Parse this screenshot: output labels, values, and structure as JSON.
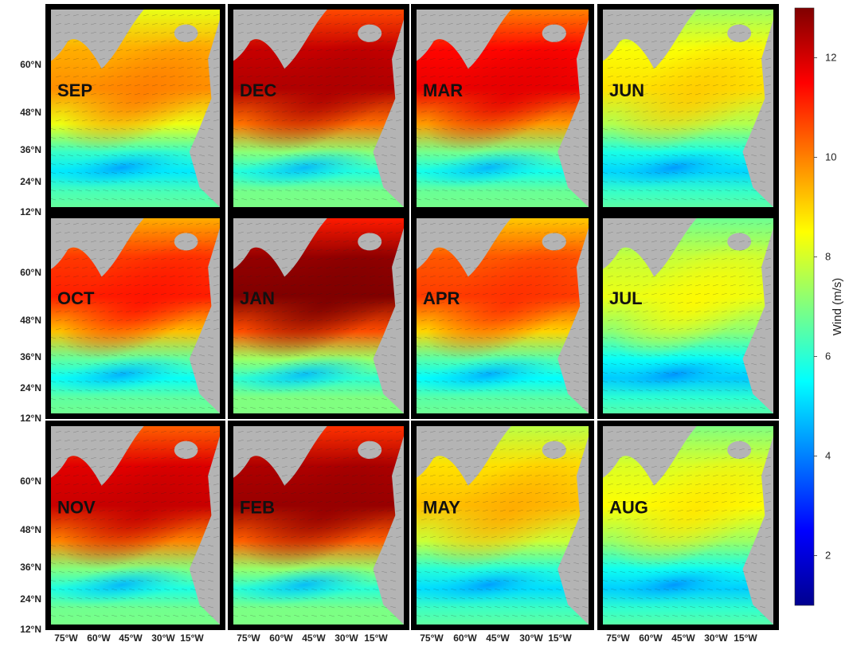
{
  "panels": [
    {
      "month": "SEP",
      "row": 0,
      "col": 0,
      "intensity": 0.45
    },
    {
      "month": "DEC",
      "row": 0,
      "col": 1,
      "intensity": 0.9
    },
    {
      "month": "MAR",
      "row": 0,
      "col": 2,
      "intensity": 0.78
    },
    {
      "month": "JUN",
      "row": 0,
      "col": 3,
      "intensity": 0.28
    },
    {
      "month": "OCT",
      "row": 1,
      "col": 0,
      "intensity": 0.68
    },
    {
      "month": "JAN",
      "row": 1,
      "col": 1,
      "intensity": 1.0
    },
    {
      "month": "APR",
      "row": 1,
      "col": 2,
      "intensity": 0.62
    },
    {
      "month": "JUL",
      "row": 1,
      "col": 3,
      "intensity": 0.18
    },
    {
      "month": "NOV",
      "row": 2,
      "col": 0,
      "intensity": 0.85
    },
    {
      "month": "FEB",
      "row": 2,
      "col": 1,
      "intensity": 0.95
    },
    {
      "month": "MAY",
      "row": 2,
      "col": 2,
      "intensity": 0.35
    },
    {
      "month": "AUG",
      "row": 2,
      "col": 3,
      "intensity": 0.22
    }
  ],
  "lat_labels": [
    "60°N",
    "48°N",
    "36°N",
    "24°N",
    "12°N"
  ],
  "lon_labels": [
    "75°W",
    "60°W",
    "45°W",
    "30°W",
    "15°W"
  ],
  "colorbar": {
    "title": "Wind (m/s)",
    "min": 1,
    "max": 13,
    "ticks": [
      "2",
      "4",
      "6",
      "8",
      "10",
      "12"
    ],
    "colormap": [
      "#00008f",
      "#0000ff",
      "#0080ff",
      "#00ffff",
      "#80ff80",
      "#ffff00",
      "#ff8000",
      "#ff0000",
      "#800000"
    ]
  },
  "colors": {
    "land": "#b4b4b4",
    "frame": "#000000"
  }
}
